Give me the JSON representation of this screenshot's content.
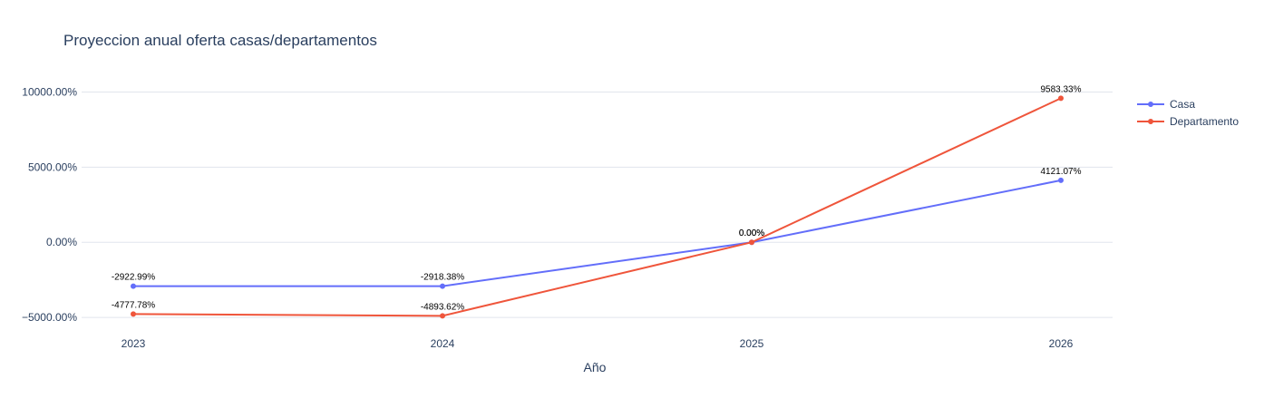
{
  "chart_data": {
    "type": "line",
    "title": "Proyeccion anual oferta casas/departamentos",
    "xlabel": "Año",
    "ylabel": "",
    "categories": [
      "2023",
      "2024",
      "2025",
      "2026"
    ],
    "y_ticks": [
      -5000,
      0,
      5000,
      10000
    ],
    "y_tick_labels": [
      "−5000.00%",
      "0.00%",
      "5000.00%",
      "10000.00%"
    ],
    "ylim": [
      -6200,
      12500
    ],
    "grid": true,
    "legend_position": "top-right",
    "series": [
      {
        "name": "Casa",
        "color": "#636efa",
        "values": [
          -2922.99,
          -2918.38,
          0.0,
          4121.07
        ],
        "labels": [
          "-2922.99%",
          "-2918.38%",
          "0.00%",
          "4121.07%"
        ]
      },
      {
        "name": "Departamento",
        "color": "#ef553b",
        "values": [
          -4777.78,
          -4893.62,
          0.0,
          9583.33
        ],
        "labels": [
          "-4777.78%",
          "-4893.62%",
          "0.00%",
          "9583.33%"
        ]
      }
    ]
  }
}
